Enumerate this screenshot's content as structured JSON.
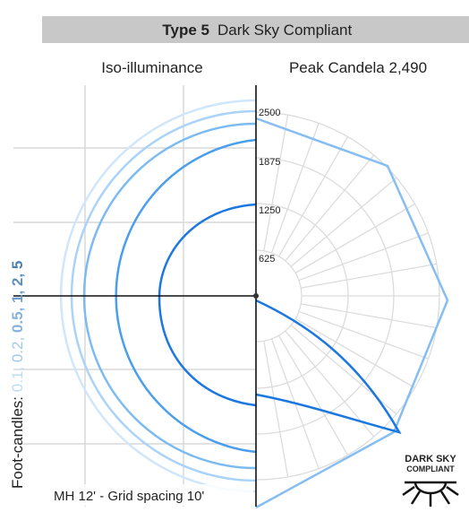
{
  "header": {
    "type": "Type 5",
    "title": "Dark Sky Compliant"
  },
  "left_title": "Iso-illuminance",
  "right_title": "Peak Candela 2,490",
  "legend": {
    "label": "Foot-candles:",
    "values": [
      "0.1,",
      "0.2,",
      "0.5,",
      "1,",
      "2,",
      "5"
    ]
  },
  "candela_rings": [
    "2500",
    "1875",
    "1250",
    "625"
  ],
  "footer": "MH 12' - Grid spacing 10'",
  "badge": [
    "DARK SKY",
    "COMPLIANT"
  ]
}
